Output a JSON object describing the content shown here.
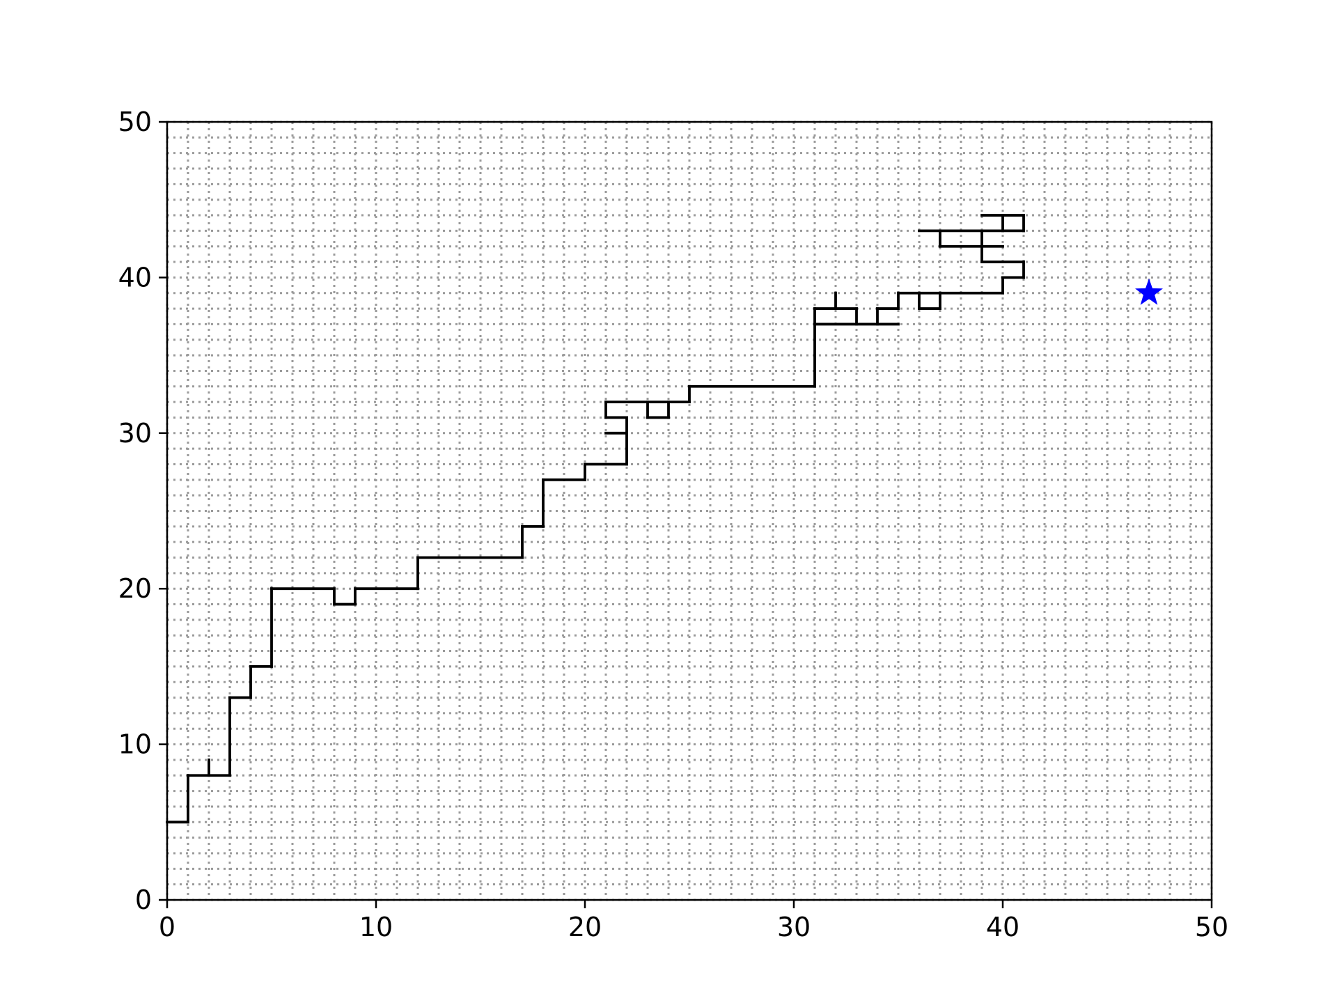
{
  "chart_data": {
    "type": "line",
    "title": "",
    "xlabel": "",
    "ylabel": "",
    "xlim": [
      0,
      50
    ],
    "ylim": [
      0,
      50
    ],
    "xticks": [
      "0",
      "10",
      "20",
      "30",
      "40",
      "50"
    ],
    "yticks": [
      "0",
      "10",
      "20",
      "30",
      "40",
      "50"
    ],
    "grid": true,
    "grid_style": "dotted, every 1 unit",
    "colors": {
      "path": "#000000",
      "goal": "#0000ff",
      "grid": "#9a9a9a"
    },
    "series": [
      {
        "type": "segments",
        "segments": [
          [
            [
              0,
              5
            ],
            [
              1,
              5
            ]
          ],
          [
            [
              1,
              5
            ],
            [
              1,
              8
            ]
          ],
          [
            [
              1,
              8
            ],
            [
              3,
              8
            ]
          ],
          [
            [
              2,
              8
            ],
            [
              2,
              9
            ]
          ],
          [
            [
              3,
              8
            ],
            [
              3,
              13
            ]
          ],
          [
            [
              3,
              13
            ],
            [
              4,
              13
            ]
          ],
          [
            [
              4,
              13
            ],
            [
              4,
              15
            ]
          ],
          [
            [
              4,
              15
            ],
            [
              5,
              15
            ]
          ],
          [
            [
              5,
              15
            ],
            [
              5,
              20
            ]
          ],
          [
            [
              5,
              20
            ],
            [
              8,
              20
            ]
          ],
          [
            [
              8,
              20
            ],
            [
              8,
              19
            ]
          ],
          [
            [
              8,
              19
            ],
            [
              9,
              19
            ]
          ],
          [
            [
              9,
              19
            ],
            [
              9,
              20
            ]
          ],
          [
            [
              9,
              20
            ],
            [
              12,
              20
            ]
          ],
          [
            [
              12,
              20
            ],
            [
              12,
              22
            ]
          ],
          [
            [
              12,
              22
            ],
            [
              17,
              22
            ]
          ],
          [
            [
              17,
              22
            ],
            [
              17,
              24
            ]
          ],
          [
            [
              17,
              24
            ],
            [
              18,
              24
            ]
          ],
          [
            [
              18,
              24
            ],
            [
              18,
              27
            ]
          ],
          [
            [
              18,
              27
            ],
            [
              20,
              27
            ]
          ],
          [
            [
              20,
              27
            ],
            [
              20,
              28
            ]
          ],
          [
            [
              20,
              28
            ],
            [
              22,
              28
            ]
          ],
          [
            [
              22,
              28
            ],
            [
              22,
              31
            ]
          ],
          [
            [
              21,
              30
            ],
            [
              22,
              30
            ]
          ],
          [
            [
              22,
              31
            ],
            [
              21,
              31
            ]
          ],
          [
            [
              21,
              31
            ],
            [
              21,
              32
            ]
          ],
          [
            [
              21,
              32
            ],
            [
              25,
              32
            ]
          ],
          [
            [
              23,
              32
            ],
            [
              23,
              31
            ]
          ],
          [
            [
              23,
              31
            ],
            [
              24,
              31
            ]
          ],
          [
            [
              24,
              31
            ],
            [
              24,
              32
            ]
          ],
          [
            [
              25,
              32
            ],
            [
              25,
              33
            ]
          ],
          [
            [
              25,
              33
            ],
            [
              31,
              33
            ]
          ],
          [
            [
              31,
              33
            ],
            [
              31,
              38
            ]
          ],
          [
            [
              31,
              38
            ],
            [
              33,
              38
            ]
          ],
          [
            [
              32,
              38
            ],
            [
              32,
              39
            ]
          ],
          [
            [
              33,
              38
            ],
            [
              33,
              37
            ]
          ],
          [
            [
              31,
              37
            ],
            [
              35,
              37
            ]
          ],
          [
            [
              34,
              37
            ],
            [
              34,
              38
            ]
          ],
          [
            [
              34,
              38
            ],
            [
              35,
              38
            ]
          ],
          [
            [
              35,
              38
            ],
            [
              35,
              39
            ]
          ],
          [
            [
              35,
              39
            ],
            [
              40,
              39
            ]
          ],
          [
            [
              36,
              39
            ],
            [
              36,
              38
            ]
          ],
          [
            [
              36,
              38
            ],
            [
              37,
              38
            ]
          ],
          [
            [
              37,
              38
            ],
            [
              37,
              39
            ]
          ],
          [
            [
              40,
              39
            ],
            [
              40,
              40
            ]
          ],
          [
            [
              40,
              40
            ],
            [
              41,
              40
            ]
          ],
          [
            [
              41,
              40
            ],
            [
              41,
              41
            ]
          ],
          [
            [
              41,
              41
            ],
            [
              39,
              41
            ]
          ],
          [
            [
              39,
              41
            ],
            [
              39,
              43
            ]
          ],
          [
            [
              37,
              42
            ],
            [
              40,
              42
            ]
          ],
          [
            [
              36,
              43
            ],
            [
              41,
              43
            ]
          ],
          [
            [
              37,
              43
            ],
            [
              37,
              42
            ]
          ],
          [
            [
              41,
              43
            ],
            [
              41,
              44
            ]
          ],
          [
            [
              41,
              44
            ],
            [
              39,
              44
            ]
          ],
          [
            [
              40,
              44
            ],
            [
              40,
              43
            ]
          ]
        ]
      }
    ],
    "goal_marker": {
      "shape": "star",
      "x": 47,
      "y": 39,
      "color": "#0000ff"
    }
  }
}
